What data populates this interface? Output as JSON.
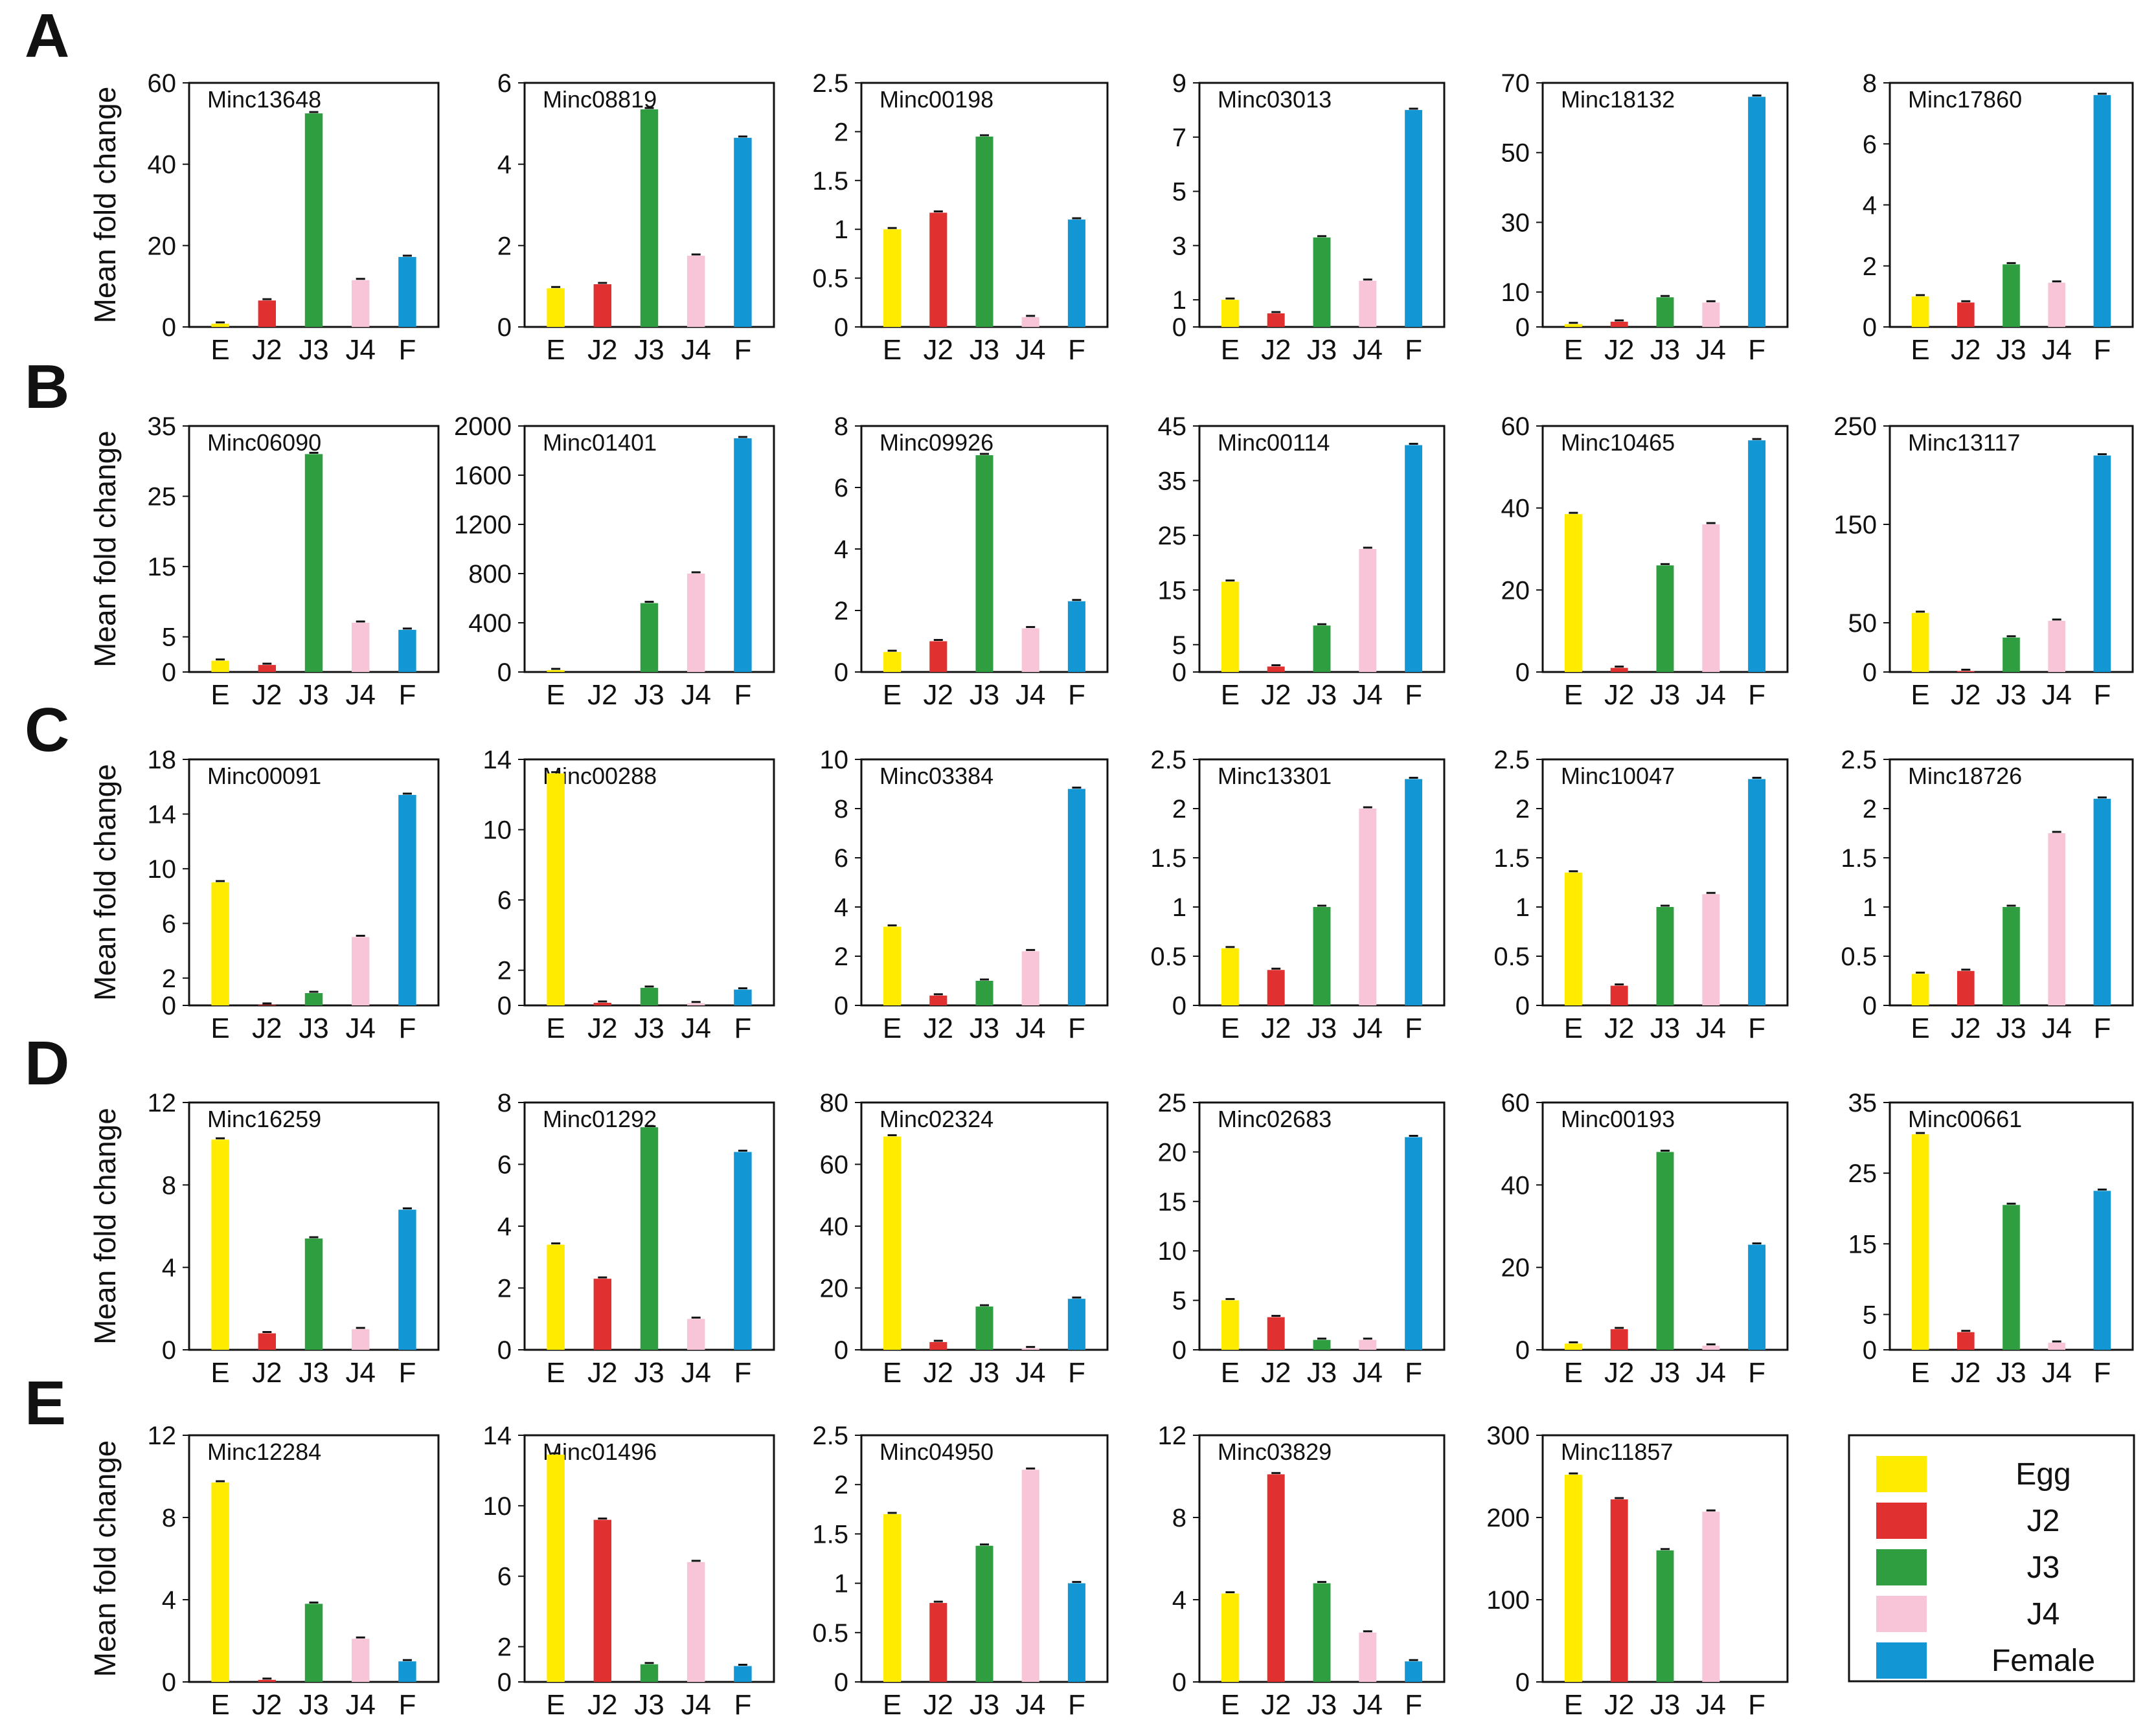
{
  "colors": {
    "E": "#ffeb00",
    "J2": "#e03030",
    "J3": "#2e9e40",
    "J4": "#f8c4d8",
    "F": "#1396d4"
  },
  "ylabel": "Mean fold change",
  "legend": [
    {
      "key": "E",
      "label": "Egg"
    },
    {
      "key": "J2",
      "label": "J2"
    },
    {
      "key": "J3",
      "label": "J3"
    },
    {
      "key": "J4",
      "label": "J4"
    },
    {
      "key": "F",
      "label": "Female"
    }
  ],
  "chart_data": [
    {
      "row": "A",
      "charts": [
        {
          "type": "bar",
          "title": "Minc13648",
          "categories": [
            "E",
            "J2",
            "J3",
            "J4",
            "F"
          ],
          "values": [
            0.8,
            6.5,
            52.5,
            11.5,
            17.2
          ],
          "ylim": [
            0,
            60
          ],
          "yticks": [
            0,
            20,
            40,
            60
          ]
        },
        {
          "type": "bar",
          "title": "Minc08819",
          "categories": [
            "E",
            "J2",
            "J3",
            "J4",
            "F"
          ],
          "values": [
            0.95,
            1.05,
            5.35,
            1.75,
            4.65
          ],
          "ylim": [
            0,
            6
          ],
          "yticks": [
            0,
            2,
            4,
            6
          ]
        },
        {
          "type": "bar",
          "title": "Minc00198",
          "categories": [
            "E",
            "J2",
            "J3",
            "J4",
            "F"
          ],
          "values": [
            1.0,
            1.17,
            1.95,
            0.1,
            1.1
          ],
          "ylim": [
            0,
            2.5
          ],
          "yticks": [
            0,
            0.5,
            1,
            1.5,
            2,
            2.5
          ]
        },
        {
          "type": "bar",
          "title": "Minc03013",
          "categories": [
            "E",
            "J2",
            "J3",
            "J4",
            "F"
          ],
          "values": [
            1.0,
            0.5,
            3.3,
            1.7,
            8.0
          ],
          "ylim": [
            0,
            9
          ],
          "yticks": [
            0,
            1,
            3,
            5,
            7,
            9
          ]
        },
        {
          "type": "bar",
          "title": "Minc18132",
          "categories": [
            "E",
            "J2",
            "J3",
            "J4",
            "F"
          ],
          "values": [
            0.8,
            1.5,
            8.5,
            7.0,
            66.0
          ],
          "ylim": [
            0,
            70
          ],
          "yticks": [
            0,
            10,
            30,
            50,
            70
          ]
        },
        {
          "type": "bar",
          "title": "Minc17860",
          "categories": [
            "E",
            "J2",
            "J3",
            "J4",
            "F"
          ],
          "values": [
            1.0,
            0.8,
            2.05,
            1.45,
            7.6
          ],
          "ylim": [
            0,
            8
          ],
          "yticks": [
            0,
            2,
            4,
            6,
            8
          ]
        }
      ]
    },
    {
      "row": "B",
      "charts": [
        {
          "type": "bar",
          "title": "Minc06090",
          "categories": [
            "E",
            "J2",
            "J3",
            "J4",
            "F"
          ],
          "values": [
            1.6,
            1.0,
            31.0,
            7.0,
            6.0
          ],
          "ylim": [
            0,
            35
          ],
          "yticks": [
            0,
            5,
            15,
            25,
            35
          ]
        },
        {
          "type": "bar",
          "title": "Minc01401",
          "categories": [
            "E",
            "J2",
            "J3",
            "J4",
            "F"
          ],
          "values": [
            15,
            0,
            560,
            800,
            1900
          ],
          "ylim": [
            0,
            2000
          ],
          "yticks": [
            0,
            400,
            800,
            1200,
            1600,
            2000
          ]
        },
        {
          "type": "bar",
          "title": "Minc09926",
          "categories": [
            "E",
            "J2",
            "J3",
            "J4",
            "F"
          ],
          "values": [
            0.65,
            1.0,
            7.05,
            1.42,
            2.3
          ],
          "ylim": [
            0,
            8
          ],
          "yticks": [
            0,
            2,
            4,
            6,
            8
          ]
        },
        {
          "type": "bar",
          "title": "Minc00114",
          "categories": [
            "E",
            "J2",
            "J3",
            "J4",
            "F"
          ],
          "values": [
            16.5,
            1.0,
            8.5,
            22.5,
            41.5
          ],
          "ylim": [
            0,
            45
          ],
          "yticks": [
            0,
            5,
            15,
            25,
            35,
            45
          ]
        },
        {
          "type": "bar",
          "title": "Minc10465",
          "categories": [
            "E",
            "J2",
            "J3",
            "J4",
            "F"
          ],
          "values": [
            38.5,
            1.0,
            26.0,
            36.0,
            56.5
          ],
          "ylim": [
            0,
            60
          ],
          "yticks": [
            0,
            20,
            40,
            60
          ]
        },
        {
          "type": "bar",
          "title": "Minc13117",
          "categories": [
            "E",
            "J2",
            "J3",
            "J4",
            "F"
          ],
          "values": [
            60,
            1,
            35,
            52,
            220
          ],
          "ylim": [
            0,
            250
          ],
          "yticks": [
            0,
            50,
            150,
            250
          ]
        }
      ]
    },
    {
      "row": "C",
      "charts": [
        {
          "type": "bar",
          "title": "Minc00091",
          "categories": [
            "E",
            "J2",
            "J3",
            "J4",
            "F"
          ],
          "values": [
            9.0,
            0.05,
            0.9,
            5.0,
            15.4
          ],
          "ylim": [
            0,
            18
          ],
          "yticks": [
            0,
            2,
            6,
            10,
            14,
            18
          ]
        },
        {
          "type": "bar",
          "title": "Minc00288",
          "categories": [
            "E",
            "J2",
            "J3",
            "J4",
            "F"
          ],
          "values": [
            13.2,
            0.15,
            1.0,
            0.12,
            0.9
          ],
          "ylim": [
            0,
            14
          ],
          "yticks": [
            0,
            2,
            6,
            10,
            14
          ]
        },
        {
          "type": "bar",
          "title": "Minc03384",
          "categories": [
            "E",
            "J2",
            "J3",
            "J4",
            "F"
          ],
          "values": [
            3.2,
            0.4,
            1.0,
            2.2,
            8.8
          ],
          "ylim": [
            0,
            10
          ],
          "yticks": [
            0,
            2,
            4,
            6,
            8,
            10
          ]
        },
        {
          "type": "bar",
          "title": "Minc13301",
          "categories": [
            "E",
            "J2",
            "J3",
            "J4",
            "F"
          ],
          "values": [
            0.58,
            0.36,
            1.0,
            2.0,
            2.3
          ],
          "ylim": [
            0,
            2.5
          ],
          "yticks": [
            0,
            0.5,
            1,
            1.5,
            2,
            2.5
          ]
        },
        {
          "type": "bar",
          "title": "Minc10047",
          "categories": [
            "E",
            "J2",
            "J3",
            "J4",
            "F"
          ],
          "values": [
            1.35,
            0.2,
            1.0,
            1.13,
            2.3
          ],
          "ylim": [
            0,
            2.5
          ],
          "yticks": [
            0,
            0.5,
            1,
            1.5,
            2,
            2.5
          ]
        },
        {
          "type": "bar",
          "title": "Minc18726",
          "categories": [
            "E",
            "J2",
            "J3",
            "J4",
            "F"
          ],
          "values": [
            0.32,
            0.35,
            1.0,
            1.75,
            2.1
          ],
          "ylim": [
            0,
            2.5
          ],
          "yticks": [
            0,
            0.5,
            1,
            1.5,
            2,
            2.5
          ]
        }
      ]
    },
    {
      "row": "D",
      "charts": [
        {
          "type": "bar",
          "title": "Minc16259",
          "categories": [
            "E",
            "J2",
            "J3",
            "J4",
            "F"
          ],
          "values": [
            10.2,
            0.8,
            5.4,
            1.0,
            6.8
          ],
          "ylim": [
            0,
            12
          ],
          "yticks": [
            0,
            4,
            8,
            12
          ]
        },
        {
          "type": "bar",
          "title": "Minc01292",
          "categories": [
            "E",
            "J2",
            "J3",
            "J4",
            "F"
          ],
          "values": [
            3.4,
            2.3,
            7.2,
            1.0,
            6.4
          ],
          "ylim": [
            0,
            8
          ],
          "yticks": [
            0,
            2,
            4,
            6,
            8
          ]
        },
        {
          "type": "bar",
          "title": "Minc02324",
          "categories": [
            "E",
            "J2",
            "J3",
            "J4",
            "F"
          ],
          "values": [
            69.0,
            2.5,
            14.0,
            0.5,
            16.5
          ],
          "ylim": [
            0,
            80
          ],
          "yticks": [
            0,
            20,
            40,
            60,
            80
          ]
        },
        {
          "type": "bar",
          "title": "Minc02683",
          "categories": [
            "E",
            "J2",
            "J3",
            "J4",
            "F"
          ],
          "values": [
            5.0,
            3.3,
            1.0,
            1.0,
            21.5
          ],
          "ylim": [
            0,
            25
          ],
          "yticks": [
            0,
            5,
            10,
            15,
            20,
            25
          ]
        },
        {
          "type": "bar",
          "title": "Minc00193",
          "categories": [
            "E",
            "J2",
            "J3",
            "J4",
            "F"
          ],
          "values": [
            1.5,
            5.0,
            48.0,
            1.0,
            25.5
          ],
          "ylim": [
            0,
            60
          ],
          "yticks": [
            0,
            20,
            40,
            60
          ]
        },
        {
          "type": "bar",
          "title": "Minc00661",
          "categories": [
            "E",
            "J2",
            "J3",
            "J4",
            "F"
          ],
          "values": [
            30.5,
            2.5,
            20.5,
            1.0,
            22.5
          ],
          "ylim": [
            0,
            35
          ],
          "yticks": [
            0,
            5,
            15,
            25,
            35
          ]
        }
      ]
    },
    {
      "row": "E",
      "charts": [
        {
          "type": "bar",
          "title": "Minc12284",
          "categories": [
            "E",
            "J2",
            "J3",
            "J4",
            "F"
          ],
          "values": [
            9.7,
            0.1,
            3.8,
            2.1,
            1.0
          ],
          "ylim": [
            0,
            12
          ],
          "yticks": [
            0,
            4,
            8,
            12
          ]
        },
        {
          "type": "bar",
          "title": "Minc01496",
          "categories": [
            "E",
            "J2",
            "J3",
            "J4",
            "F"
          ],
          "values": [
            12.9,
            9.2,
            1.0,
            6.8,
            0.9
          ],
          "ylim": [
            0,
            14
          ],
          "yticks": [
            0,
            2,
            6,
            10,
            14
          ]
        },
        {
          "type": "bar",
          "title": "Minc04950",
          "categories": [
            "E",
            "J2",
            "J3",
            "J4",
            "F"
          ],
          "values": [
            1.7,
            0.8,
            1.38,
            2.15,
            1.0
          ],
          "ylim": [
            0,
            2.5
          ],
          "yticks": [
            0,
            0.5,
            1,
            1.5,
            2,
            2.5
          ]
        },
        {
          "type": "bar",
          "title": "Minc03829",
          "categories": [
            "E",
            "J2",
            "J3",
            "J4",
            "F"
          ],
          "values": [
            4.3,
            10.1,
            4.8,
            2.4,
            1.0
          ],
          "ylim": [
            0,
            12
          ],
          "yticks": [
            0,
            4,
            8,
            12
          ]
        },
        {
          "type": "bar",
          "title": "Minc11857",
          "categories": [
            "E",
            "J2",
            "J3",
            "J4",
            "F"
          ],
          "values": [
            252,
            222,
            160,
            207,
            0
          ],
          "ylim": [
            0,
            300
          ],
          "yticks": [
            0,
            100,
            200,
            300
          ]
        }
      ]
    }
  ]
}
